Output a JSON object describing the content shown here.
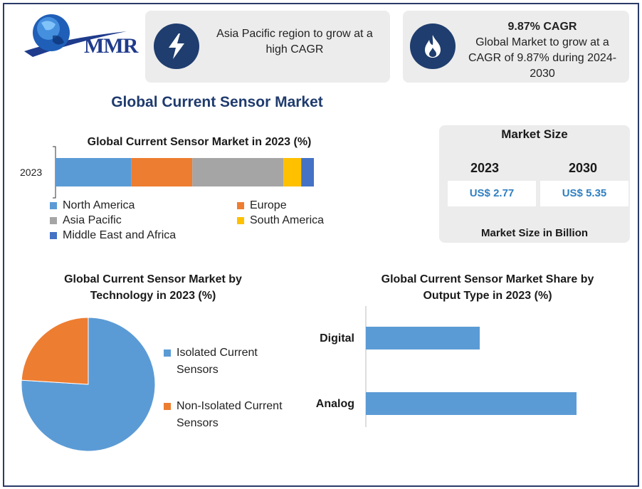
{
  "header": {
    "logo_text": "MMR",
    "card1": {
      "icon": "lightning-bolt-icon",
      "text": "Asia Pacific region to grow at a high CAGR"
    },
    "card2": {
      "icon": "flame-icon",
      "title": "9.87% CAGR",
      "text": "Global Market to grow at a CAGR of 9.87% during 2024-2030"
    }
  },
  "main_title": "Global Current Sensor Market",
  "colors": {
    "north_america": "#5b9bd5",
    "europe": "#ed7d31",
    "asia_pacific": "#a5a5a5",
    "south_america": "#ffc000",
    "mea": "#4472c4",
    "icon_bg": "#1f3d6e"
  },
  "market_size": {
    "title": "Market Size",
    "years": [
      "2023",
      "2030"
    ],
    "values": [
      "US$ 2.77",
      "US$ 5.35"
    ],
    "footer": "Market Size in Billion"
  },
  "chart_data": [
    {
      "type": "bar",
      "orientation": "horizontal-stacked-100",
      "title": "Global Current Sensor Market in 2023 (%)",
      "categories": [
        "2023"
      ],
      "series": [
        {
          "name": "North America",
          "values": [
            30
          ],
          "color": "#5b9bd5"
        },
        {
          "name": "Europe",
          "values": [
            24
          ],
          "color": "#ed7d31"
        },
        {
          "name": "Asia Pacific",
          "values": [
            36
          ],
          "color": "#a5a5a5"
        },
        {
          "name": "South America",
          "values": [
            7
          ],
          "color": "#ffc000"
        },
        {
          "name": "Middle East and Africa",
          "values": [
            5
          ],
          "color": "#4472c4"
        }
      ],
      "legend_placement": "bottom"
    },
    {
      "type": "pie",
      "title": "Global Current Sensor Market by Technology in 2023 (%)",
      "labels": [
        "Isolated Current Sensors",
        "Non-Isolated Current Sensors"
      ],
      "values": [
        76,
        24
      ],
      "colors": [
        "#5b9bd5",
        "#ed7d31"
      ],
      "legend_placement": "right"
    },
    {
      "type": "bar",
      "orientation": "horizontal",
      "title": "Global Current Sensor Market Share by Output Type in 2023 (%)",
      "categories": [
        "Digital",
        "Analog"
      ],
      "values": [
        40,
        74
      ],
      "xlim": [
        0,
        100
      ],
      "color": "#5b9bd5",
      "grid": false
    }
  ]
}
